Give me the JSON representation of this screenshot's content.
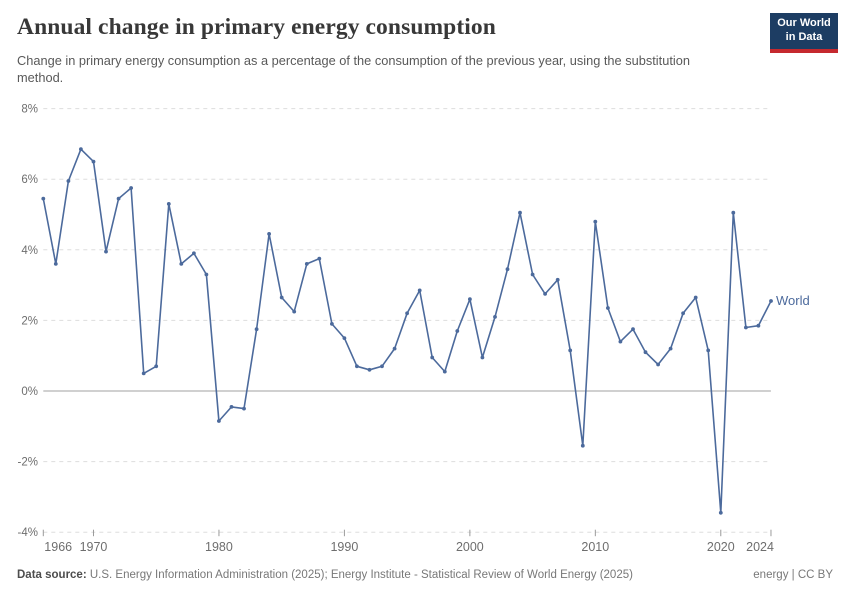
{
  "header": {
    "title": "Annual change in primary energy consumption",
    "subtitle": "Change in primary energy consumption as a percentage of the consumption of the previous year, using the substitution method.",
    "logo": {
      "line1": "Our World",
      "line2": "in Data"
    }
  },
  "chart_data": {
    "type": "line",
    "title": "Annual change in primary energy consumption",
    "xlabel": "",
    "ylabel": "",
    "grid": true,
    "legend_position": "inline-right-of-line",
    "xlim": [
      1966,
      2024
    ],
    "ylim": [
      -4,
      8
    ],
    "grid_color": "#dddddd",
    "zero_line_color": "#a2a2a2",
    "tick_color": "#9a9a9a",
    "yticks": [
      {
        "label": "8%",
        "value": 8
      },
      {
        "label": "6%",
        "value": 6
      },
      {
        "label": "4%",
        "value": 4
      },
      {
        "label": "2%",
        "value": 2
      },
      {
        "label": "0%",
        "value": 0
      },
      {
        "label": "-2%",
        "value": -2
      },
      {
        "label": "-4%",
        "value": -4
      }
    ],
    "xticks": [
      {
        "label": "1966",
        "year": 1966,
        "align": "start"
      },
      {
        "label": "1970",
        "year": 1970
      },
      {
        "label": "1980",
        "year": 1980
      },
      {
        "label": "1990",
        "year": 1990
      },
      {
        "label": "2000",
        "year": 2000
      },
      {
        "label": "2010",
        "year": 2010
      },
      {
        "label": "2020",
        "year": 2020
      },
      {
        "label": "2024",
        "year": 2024,
        "align": "end"
      }
    ],
    "series": [
      {
        "name": "World",
        "color": "#4c6a9c",
        "years": [
          1966,
          1967,
          1968,
          1969,
          1970,
          1971,
          1972,
          1973,
          1974,
          1975,
          1976,
          1977,
          1978,
          1979,
          1980,
          1981,
          1982,
          1983,
          1984,
          1985,
          1986,
          1987,
          1988,
          1989,
          1990,
          1991,
          1992,
          1993,
          1994,
          1995,
          1996,
          1997,
          1998,
          1999,
          2000,
          2001,
          2002,
          2003,
          2004,
          2005,
          2006,
          2007,
          2008,
          2009,
          2010,
          2011,
          2012,
          2013,
          2014,
          2015,
          2016,
          2017,
          2018,
          2019,
          2020,
          2021,
          2022,
          2023,
          2024
        ],
        "values": [
          5.45,
          3.6,
          5.95,
          6.85,
          6.5,
          3.95,
          5.45,
          5.75,
          0.5,
          0.7,
          5.3,
          3.6,
          3.9,
          3.3,
          -0.85,
          -0.45,
          -0.5,
          1.75,
          4.45,
          2.65,
          2.25,
          3.6,
          3.75,
          1.9,
          1.5,
          0.7,
          0.6,
          0.7,
          1.2,
          2.2,
          2.85,
          0.95,
          0.55,
          1.7,
          2.6,
          0.95,
          2.1,
          3.45,
          5.05,
          3.3,
          2.75,
          3.15,
          1.15,
          -1.55,
          4.8,
          2.35,
          1.4,
          1.75,
          1.1,
          0.75,
          1.2,
          2.2,
          2.65,
          1.15,
          -3.45,
          5.05,
          1.8,
          1.85,
          2.55
        ]
      }
    ]
  },
  "footer": {
    "source_label": "Data source:",
    "source_text": " U.S. Energy Information Administration (2025); Energy Institute - Statistical Review of World Energy (2025)",
    "license_topic": "energy",
    "license_separator": " | ",
    "license_text": "CC BY"
  }
}
